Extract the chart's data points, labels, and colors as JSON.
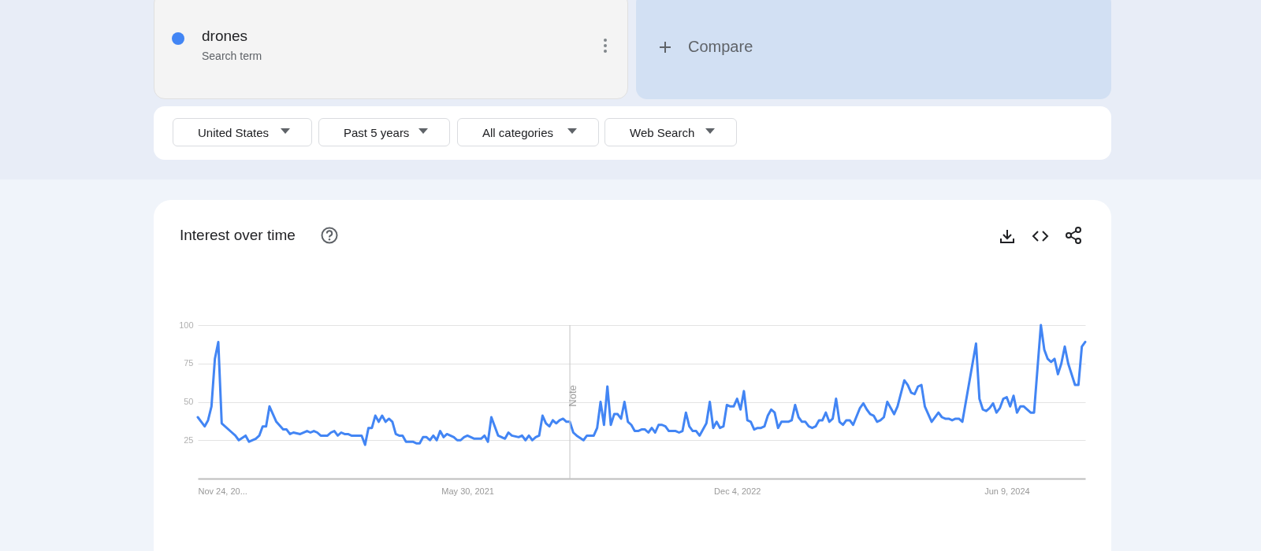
{
  "chart_data": {
    "type": "line",
    "title": "Interest over time",
    "annotations": [
      "Search term",
      "Compare",
      "United States",
      "Past 5 years",
      "All categories",
      "Web Search"
    ],
    "xlim": [
      "2019-11-24",
      "2024-11-17"
    ],
    "xticks": [
      {
        "value": "2019-11-24",
        "label": "Nov 24, 20..."
      },
      {
        "value": "2021-05-30",
        "label": "May 30, 2021"
      },
      {
        "value": "2022-12-04",
        "label": "Dec 4, 2022"
      },
      {
        "value": "2024-06-09",
        "label": "Jun 9, 2024"
      }
    ],
    "ylim": [
      0,
      100
    ],
    "yticks": [
      25,
      50,
      75,
      100
    ],
    "grid": "y",
    "legend": "top left",
    "marker": "none",
    "line_style": "solid",
    "ref_lines": [
      {
        "axis": "x",
        "value": "2021-12-26",
        "label": "Note",
        "color": "#cccccc"
      }
    ],
    "series": [
      {
        "name": "drones",
        "color": "#4285f4",
        "x": [
          "2019-11-24",
          "2019-12-08",
          "2019-12-15",
          "2019-12-22",
          "2019-12-29",
          "2020-01-05",
          "2020-01-12",
          "2020-02-02",
          "2020-02-09",
          "2020-02-16",
          "2020-03-01",
          "2020-03-08",
          "2020-03-22",
          "2020-03-29",
          "2020-04-05",
          "2020-04-12",
          "2020-04-19",
          "2020-05-03",
          "2020-05-17",
          "2020-05-24",
          "2020-05-31",
          "2020-06-07",
          "2020-06-21",
          "2020-07-05",
          "2020-07-12",
          "2020-07-19",
          "2020-07-26",
          "2020-08-02",
          "2020-08-16",
          "2020-08-23",
          "2020-08-30",
          "2020-09-06",
          "2020-09-13",
          "2020-09-20",
          "2020-09-27",
          "2020-10-04",
          "2020-10-25",
          "2020-11-01",
          "2020-11-08",
          "2020-11-15",
          "2020-11-22",
          "2020-11-29",
          "2020-12-06",
          "2020-12-13",
          "2020-12-20",
          "2020-12-27",
          "2021-01-03",
          "2021-01-10",
          "2021-01-17",
          "2021-01-24",
          "2021-02-07",
          "2021-02-14",
          "2021-02-21",
          "2021-02-28",
          "2021-03-07",
          "2021-03-14",
          "2021-03-21",
          "2021-03-28",
          "2021-04-04",
          "2021-04-11",
          "2021-04-18",
          "2021-05-02",
          "2021-05-09",
          "2021-05-16",
          "2021-05-23",
          "2021-05-30",
          "2021-06-13",
          "2021-06-27",
          "2021-07-04",
          "2021-07-11",
          "2021-07-18",
          "2021-08-01",
          "2021-08-15",
          "2021-08-22",
          "2021-08-29",
          "2021-09-12",
          "2021-09-19",
          "2021-09-26",
          "2021-10-03",
          "2021-10-10",
          "2021-10-17",
          "2021-10-24",
          "2021-10-31",
          "2021-11-07",
          "2021-11-14",
          "2021-11-21",
          "2021-11-28",
          "2021-12-05",
          "2021-12-12",
          "2021-12-19",
          "2021-12-26",
          "2022-01-02",
          "2022-01-09",
          "2022-01-23",
          "2022-01-30",
          "2022-02-13",
          "2022-02-20",
          "2022-02-27",
          "2022-03-06",
          "2022-03-13",
          "2022-03-20",
          "2022-03-27",
          "2022-04-03",
          "2022-04-10",
          "2022-04-17",
          "2022-04-24",
          "2022-05-01",
          "2022-05-08",
          "2022-05-15",
          "2022-05-22",
          "2022-05-29",
          "2022-06-05",
          "2022-06-12",
          "2022-06-19",
          "2022-06-26",
          "2022-07-03",
          "2022-07-10",
          "2022-07-17",
          "2022-07-31",
          "2022-08-07",
          "2022-08-14",
          "2022-08-21",
          "2022-08-28",
          "2022-09-04",
          "2022-09-11",
          "2022-09-18",
          "2022-10-02",
          "2022-10-09",
          "2022-10-16",
          "2022-10-23",
          "2022-10-30",
          "2022-11-06",
          "2022-11-13",
          "2022-11-20",
          "2022-11-27",
          "2022-12-04",
          "2022-12-11",
          "2022-12-18",
          "2022-12-25",
          "2023-01-01",
          "2023-01-08",
          "2023-01-15",
          "2023-01-22",
          "2023-01-29",
          "2023-02-05",
          "2023-02-12",
          "2023-02-19",
          "2023-02-26",
          "2023-03-05",
          "2023-03-19",
          "2023-03-26",
          "2023-04-02",
          "2023-04-09",
          "2023-04-16",
          "2023-04-23",
          "2023-04-30",
          "2023-05-07",
          "2023-05-14",
          "2023-05-21",
          "2023-05-28",
          "2023-06-04",
          "2023-06-11",
          "2023-06-18",
          "2023-06-25",
          "2023-07-02",
          "2023-07-09",
          "2023-07-16",
          "2023-07-23",
          "2023-07-30",
          "2023-08-13",
          "2023-08-20",
          "2023-08-27",
          "2023-09-03",
          "2023-09-10",
          "2023-09-17",
          "2023-09-24",
          "2023-10-01",
          "2023-10-08",
          "2023-10-15",
          "2023-10-22",
          "2023-10-29",
          "2023-11-12",
          "2023-11-19",
          "2023-11-26",
          "2023-12-03",
          "2023-12-10",
          "2023-12-17",
          "2023-12-24",
          "2023-12-31",
          "2024-01-07",
          "2024-01-21",
          "2024-01-28",
          "2024-02-04",
          "2024-02-11",
          "2024-02-18",
          "2024-02-25",
          "2024-03-03",
          "2024-03-10",
          "2024-04-07",
          "2024-04-14",
          "2024-04-21",
          "2024-04-28",
          "2024-05-05",
          "2024-05-12",
          "2024-05-19",
          "2024-05-26",
          "2024-06-02",
          "2024-06-09",
          "2024-06-16",
          "2024-06-23",
          "2024-06-30",
          "2024-07-07",
          "2024-07-14",
          "2024-07-28",
          "2024-08-04",
          "2024-08-18",
          "2024-08-25",
          "2024-09-01",
          "2024-09-08",
          "2024-09-15",
          "2024-09-22",
          "2024-09-29",
          "2024-10-06",
          "2024-10-13",
          "2024-10-27",
          "2024-11-03",
          "2024-11-10",
          "2024-11-17"
        ],
        "values": [
          40,
          34,
          38,
          47,
          78,
          89,
          36,
          30,
          28,
          25,
          28,
          24,
          26,
          28,
          34,
          34,
          47,
          37,
          32,
          32,
          29,
          30,
          29,
          31,
          30,
          31,
          30,
          28,
          28,
          30,
          31,
          28,
          30,
          29,
          29,
          28,
          28,
          22,
          33,
          33,
          41,
          37,
          41,
          37,
          39,
          37,
          29,
          28,
          28,
          24,
          24,
          23,
          23,
          27,
          27,
          25,
          28,
          25,
          31,
          27,
          29,
          27,
          25,
          25,
          27,
          28,
          26,
          26,
          28,
          24,
          40,
          28,
          26,
          30,
          28,
          27,
          28,
          25,
          28,
          25,
          27,
          28,
          41,
          36,
          34,
          38,
          36,
          38,
          39,
          37,
          37,
          30,
          28,
          25,
          28,
          28,
          33,
          50,
          35,
          60,
          35,
          42,
          42,
          39,
          50,
          37,
          35,
          31,
          31,
          32,
          32,
          30,
          33,
          30,
          35,
          35,
          34,
          31,
          31,
          30,
          31,
          43,
          34,
          31,
          31,
          28,
          36,
          50,
          33,
          37,
          33,
          34,
          48,
          47,
          47,
          52,
          45,
          57,
          38,
          37,
          32,
          33,
          33,
          34,
          41,
          45,
          43,
          33,
          37,
          37,
          38,
          48,
          40,
          37,
          37,
          34,
          33,
          34,
          38,
          38,
          43,
          37,
          39,
          52,
          37,
          35,
          38,
          38,
          35,
          46,
          49,
          45,
          42,
          41,
          37,
          38,
          40,
          50,
          46,
          42,
          47,
          64,
          61,
          56,
          55,
          60,
          61,
          47,
          42,
          37,
          43,
          40,
          39,
          39,
          38,
          39,
          39,
          37,
          88,
          52,
          45,
          44,
          46,
          49,
          43,
          46,
          52,
          53,
          47,
          54,
          43,
          47,
          47,
          43,
          43,
          100,
          84,
          78,
          76,
          78,
          68,
          75,
          86,
          75,
          61,
          61,
          86,
          89
        ]
      }
    ]
  }
}
